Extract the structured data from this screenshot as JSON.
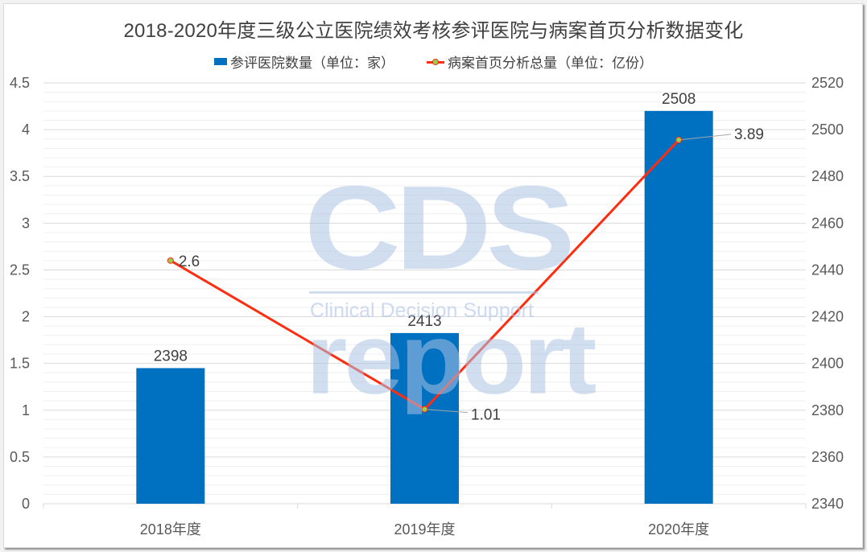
{
  "chart_data": {
    "type": "bar+line",
    "title": "2018-2020年度三级公立医院绩效考核参评医院与病案首页分析数据变化",
    "categories": [
      "2018年度",
      "2019年度",
      "2020年度"
    ],
    "series": [
      {
        "name": "参评医院数量（单位：家）",
        "type": "bar",
        "axis": "right",
        "color": "#0070c0",
        "values": [
          2398,
          2413,
          2508
        ],
        "labels": [
          "2398",
          "2413",
          "2508"
        ]
      },
      {
        "name": "病案首页分析总量（单位：亿份）",
        "type": "line",
        "axis": "left",
        "color": "#ff2d10",
        "marker_color": "#92d050",
        "values": [
          2.6,
          1.01,
          3.89
        ],
        "labels": [
          "2.6",
          "1.01",
          "3.89"
        ]
      }
    ],
    "left_axis": {
      "min": 0,
      "max": 4.5,
      "step": 0.5,
      "ticks": [
        "0",
        "0.5",
        "1",
        "1.5",
        "2",
        "2.5",
        "3",
        "3.5",
        "4",
        "4.5"
      ]
    },
    "right_axis": {
      "min": 2340,
      "max": 2520,
      "step": 20,
      "ticks": [
        "2340",
        "2360",
        "2380",
        "2400",
        "2420",
        "2440",
        "2460",
        "2480",
        "2500",
        "2520"
      ]
    },
    "grid": true,
    "minor_grid": true,
    "legend_position": "top",
    "xlabel": "",
    "ylabel": ""
  },
  "watermark": {
    "logo": "CDS",
    "subtitle": "Clinical Decision Support",
    "word": "report"
  }
}
